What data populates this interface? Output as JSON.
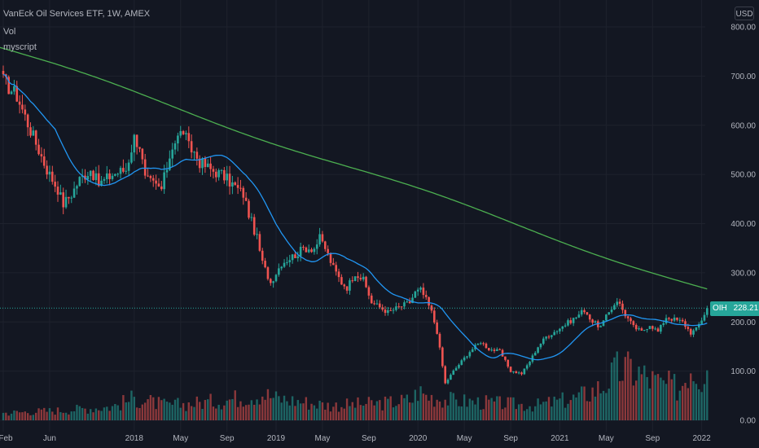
{
  "header": {
    "title": "VanEck Oil Services ETF, 1W, AMEX",
    "vol_label": "Vol",
    "script_label": "myscript",
    "currency": "USD"
  },
  "price_badge": {
    "symbol": "OIH",
    "value": "228.21"
  },
  "colors": {
    "background": "#131722",
    "up": "#26a69a",
    "down": "#ef5350",
    "ma_fast": "#2196f3",
    "ma_slow": "#4caf50",
    "axis_text": "#b2b5be",
    "grid": "#1e222d"
  },
  "chart_data": {
    "type": "line",
    "grid": true,
    "y_axis": {
      "ticks": [
        0,
        100,
        200,
        300,
        400,
        500,
        600,
        700,
        800
      ],
      "tick_labels": [
        "0.00",
        "100.00",
        "200.00",
        "300.00",
        "400.00",
        "500.00",
        "600.00",
        "700.00",
        "800.00"
      ],
      "range": [
        0,
        825
      ]
    },
    "x_axis": {
      "tick_labels": [
        "Feb",
        "Jun",
        "2018",
        "May",
        "Sep",
        "2019",
        "May",
        "Sep",
        "2020",
        "May",
        "Sep",
        "2021",
        "May",
        "Sep",
        "2022"
      ],
      "tick_weeks": [
        0,
        17,
        48,
        65,
        82,
        100,
        117,
        134,
        152,
        169,
        186,
        204,
        221,
        238,
        256
      ]
    },
    "last_price": 228.21,
    "price_anchors": {
      "weeks": [
        0,
        5,
        10,
        16,
        20,
        22,
        25,
        28,
        32,
        35,
        40,
        45,
        48,
        50,
        52,
        55,
        58,
        62,
        66,
        68,
        70,
        72,
        76,
        80,
        83,
        86,
        88,
        90,
        93,
        95,
        98,
        100,
        102,
        105,
        108,
        110,
        114,
        116,
        118,
        121,
        124,
        126,
        129,
        132,
        135,
        138,
        141,
        145,
        149,
        151,
        153,
        155,
        157,
        159,
        162,
        165,
        168,
        171,
        175,
        178,
        182,
        186,
        190,
        193,
        196,
        199,
        202,
        206,
        210,
        213,
        216,
        219,
        222,
        225,
        228,
        231,
        234,
        237,
        240,
        243,
        246,
        249,
        252,
        254,
        256,
        258
      ],
      "close": [
        690,
        660,
        590,
        510,
        470,
        440,
        460,
        490,
        510,
        480,
        500,
        510,
        575,
        560,
        490,
        480,
        470,
        560,
        590,
        555,
        545,
        525,
        510,
        500,
        485,
        470,
        460,
        420,
        370,
        320,
        280,
        300,
        320,
        330,
        340,
        350,
        350,
        370,
        350,
        310,
        280,
        270,
        300,
        285,
        240,
        230,
        220,
        230,
        240,
        260,
        265,
        245,
        220,
        180,
        75,
        100,
        120,
        140,
        160,
        145,
        140,
        100,
        95,
        120,
        150,
        170,
        180,
        195,
        210,
        225,
        200,
        190,
        220,
        245,
        215,
        190,
        180,
        195,
        180,
        210,
        205,
        200,
        178,
        185,
        205,
        228.21
      ]
    },
    "volume_anchors": {
      "weeks": [
        0,
        20,
        40,
        48,
        60,
        80,
        95,
        100,
        120,
        140,
        150,
        152,
        155,
        165,
        180,
        195,
        210,
        220,
        225,
        230,
        240,
        248,
        252,
        256,
        258
      ],
      "volume": [
        15,
        20,
        28,
        45,
        30,
        40,
        55,
        45,
        30,
        35,
        42,
        60,
        50,
        40,
        35,
        30,
        45,
        70,
        100,
        105,
        75,
        65,
        115,
        90,
        135
      ]
    },
    "series": [
      {
        "name": "OIH",
        "kind": "candlestick"
      },
      {
        "name": "Vol",
        "kind": "histogram"
      },
      {
        "kind": "moving-average"
      },
      {
        "kind": "moving-average"
      }
    ]
  }
}
